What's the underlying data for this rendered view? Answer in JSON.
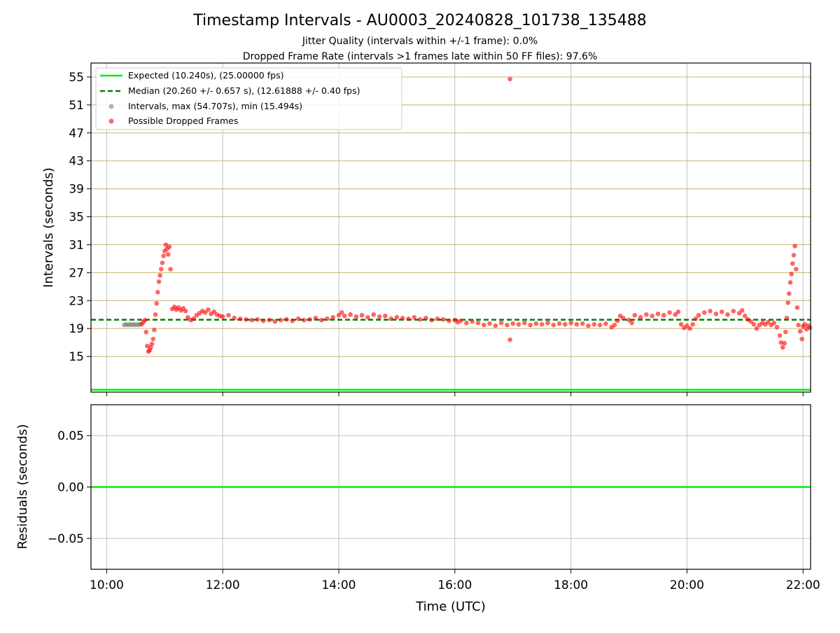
{
  "chart_data": [
    {
      "type": "scatter",
      "title": "Timestamp Intervals - AU0003_20240828_101738_135488",
      "subtitle_lines": [
        "Jitter Quality (intervals within +/-1 frame): 0.0%",
        "Dropped Frame Rate (intervals >1 frames late within 50 FF files): 97.6%"
      ],
      "xlabel": "",
      "ylabel": "Intervals (seconds)",
      "x_unit": "hours UTC",
      "xlim": [
        9.73,
        22.13
      ],
      "ylim": [
        9.9,
        57.0
      ],
      "yticks": [
        15,
        19,
        23,
        27,
        31,
        35,
        39,
        43,
        47,
        51,
        55
      ],
      "xticks": [
        10,
        12,
        14,
        16,
        18,
        20,
        22
      ],
      "grid": true,
      "legend_position": "top-left",
      "legend": [
        "Expected (10.240s), (25.00000 fps)",
        "Median (20.260 +/- 0.657 s), (12.61888 +/- 0.40 fps)",
        "Intervals, max (54.707s), min (15.494s)",
        "Possible Dropped Frames"
      ],
      "lines": [
        {
          "name": "Expected (10.240s), (25.00000 fps)",
          "y": 10.24,
          "style": "solid",
          "color": "#00ee00"
        },
        {
          "name": "Median (20.260 +/- 0.657 s), (12.61888 +/- 0.40 fps)",
          "y": 20.26,
          "style": "dashed",
          "color": "#008000"
        }
      ],
      "series": [
        {
          "name": "Intervals, max (54.707s), min (15.494s)",
          "color": "#808080",
          "points": [
            [
              10.3,
              19.5
            ],
            [
              10.33,
              19.6
            ],
            [
              10.36,
              19.5
            ],
            [
              10.39,
              19.6
            ],
            [
              10.42,
              19.5
            ],
            [
              10.45,
              19.6
            ],
            [
              10.48,
              19.5
            ],
            [
              10.51,
              19.6
            ],
            [
              10.54,
              19.5
            ],
            [
              10.57,
              19.6
            ]
          ]
        },
        {
          "name": "Possible Dropped Frames",
          "color": "#ff0000",
          "points": [
            [
              10.6,
              19.6
            ],
            [
              10.63,
              19.9
            ],
            [
              10.66,
              20.2
            ],
            [
              10.68,
              18.5
            ],
            [
              10.7,
              16.5
            ],
            [
              10.72,
              15.7
            ],
            [
              10.74,
              15.9
            ],
            [
              10.76,
              16.3
            ],
            [
              10.78,
              16.8
            ],
            [
              10.8,
              17.5
            ],
            [
              10.82,
              18.8
            ],
            [
              10.84,
              21.0
            ],
            [
              10.86,
              22.6
            ],
            [
              10.88,
              24.2
            ],
            [
              10.9,
              25.7
            ],
            [
              10.92,
              26.6
            ],
            [
              10.94,
              27.5
            ],
            [
              10.96,
              28.4
            ],
            [
              10.98,
              29.4
            ],
            [
              11.0,
              30.1
            ],
            [
              11.02,
              31.0
            ],
            [
              11.04,
              30.4
            ],
            [
              11.06,
              29.6
            ],
            [
              11.08,
              30.7
            ],
            [
              11.1,
              27.5
            ],
            [
              11.13,
              21.8
            ],
            [
              11.17,
              22.1
            ],
            [
              11.2,
              21.7
            ],
            [
              11.24,
              22.0
            ],
            [
              11.28,
              21.6
            ],
            [
              11.32,
              21.9
            ],
            [
              11.36,
              21.5
            ],
            [
              11.4,
              20.6
            ],
            [
              11.45,
              20.2
            ],
            [
              11.5,
              20.4
            ],
            [
              11.55,
              20.9
            ],
            [
              11.6,
              21.2
            ],
            [
              11.65,
              21.5
            ],
            [
              11.7,
              21.3
            ],
            [
              11.75,
              21.7
            ],
            [
              11.8,
              21.1
            ],
            [
              11.85,
              21.4
            ],
            [
              11.9,
              21.0
            ],
            [
              11.95,
              20.8
            ],
            [
              12.0,
              20.7
            ],
            [
              12.1,
              20.9
            ],
            [
              12.2,
              20.5
            ],
            [
              12.3,
              20.4
            ],
            [
              12.4,
              20.3
            ],
            [
              12.5,
              20.2
            ],
            [
              12.6,
              20.3
            ],
            [
              12.7,
              20.1
            ],
            [
              12.8,
              20.2
            ],
            [
              12.9,
              20.0
            ],
            [
              13.0,
              20.2
            ],
            [
              13.1,
              20.3
            ],
            [
              13.2,
              20.1
            ],
            [
              13.3,
              20.4
            ],
            [
              13.4,
              20.2
            ],
            [
              13.5,
              20.3
            ],
            [
              13.6,
              20.5
            ],
            [
              13.7,
              20.2
            ],
            [
              13.8,
              20.4
            ],
            [
              13.9,
              20.6
            ],
            [
              14.0,
              20.9
            ],
            [
              14.05,
              21.3
            ],
            [
              14.1,
              20.8
            ],
            [
              14.2,
              21.0
            ],
            [
              14.3,
              20.7
            ],
            [
              14.4,
              20.9
            ],
            [
              14.5,
              20.6
            ],
            [
              14.6,
              21.0
            ],
            [
              14.7,
              20.7
            ],
            [
              14.8,
              20.8
            ],
            [
              14.9,
              20.4
            ],
            [
              15.0,
              20.6
            ],
            [
              15.1,
              20.5
            ],
            [
              15.2,
              20.4
            ],
            [
              15.3,
              20.6
            ],
            [
              15.4,
              20.3
            ],
            [
              15.5,
              20.5
            ],
            [
              15.6,
              20.2
            ],
            [
              15.7,
              20.4
            ],
            [
              15.8,
              20.3
            ],
            [
              15.9,
              20.1
            ],
            [
              16.0,
              20.2
            ],
            [
              16.05,
              19.9
            ],
            [
              16.1,
              20.1
            ],
            [
              16.2,
              19.8
            ],
            [
              16.3,
              20.0
            ],
            [
              16.4,
              19.8
            ],
            [
              16.5,
              19.5
            ],
            [
              16.6,
              19.7
            ],
            [
              16.7,
              19.4
            ],
            [
              16.8,
              19.8
            ],
            [
              16.9,
              19.5
            ],
            [
              16.95,
              17.4
            ],
            [
              16.95,
              54.7
            ],
            [
              17.0,
              19.7
            ],
            [
              17.1,
              19.6
            ],
            [
              17.2,
              19.8
            ],
            [
              17.3,
              19.5
            ],
            [
              17.4,
              19.7
            ],
            [
              17.5,
              19.6
            ],
            [
              17.6,
              19.8
            ],
            [
              17.7,
              19.5
            ],
            [
              17.8,
              19.7
            ],
            [
              17.9,
              19.6
            ],
            [
              18.0,
              19.8
            ],
            [
              18.1,
              19.6
            ],
            [
              18.2,
              19.7
            ],
            [
              18.3,
              19.4
            ],
            [
              18.4,
              19.6
            ],
            [
              18.5,
              19.5
            ],
            [
              18.6,
              19.7
            ],
            [
              18.7,
              19.2
            ],
            [
              18.75,
              19.5
            ],
            [
              18.8,
              20.1
            ],
            [
              18.85,
              20.8
            ],
            [
              18.9,
              20.5
            ],
            [
              19.0,
              20.2
            ],
            [
              19.05,
              19.8
            ],
            [
              19.1,
              20.9
            ],
            [
              19.2,
              20.6
            ],
            [
              19.3,
              21.0
            ],
            [
              19.4,
              20.8
            ],
            [
              19.5,
              21.1
            ],
            [
              19.6,
              20.9
            ],
            [
              19.7,
              21.3
            ],
            [
              19.8,
              21.0
            ],
            [
              19.85,
              21.4
            ],
            [
              19.9,
              19.6
            ],
            [
              19.95,
              19.1
            ],
            [
              20.0,
              19.4
            ],
            [
              20.05,
              19.0
            ],
            [
              20.1,
              19.6
            ],
            [
              20.15,
              20.4
            ],
            [
              20.2,
              20.9
            ],
            [
              20.3,
              21.3
            ],
            [
              20.4,
              21.5
            ],
            [
              20.5,
              21.1
            ],
            [
              20.6,
              21.4
            ],
            [
              20.7,
              21.0
            ],
            [
              20.8,
              21.5
            ],
            [
              20.9,
              21.2
            ],
            [
              20.95,
              21.6
            ],
            [
              21.0,
              20.8
            ],
            [
              21.05,
              20.3
            ],
            [
              21.1,
              20.0
            ],
            [
              21.15,
              19.6
            ],
            [
              21.2,
              19.0
            ],
            [
              21.25,
              19.5
            ],
            [
              21.3,
              19.8
            ],
            [
              21.35,
              19.6
            ],
            [
              21.4,
              19.9
            ],
            [
              21.45,
              19.5
            ],
            [
              21.5,
              19.8
            ],
            [
              21.55,
              19.2
            ],
            [
              21.6,
              18.0
            ],
            [
              21.62,
              17.0
            ],
            [
              21.65,
              16.3
            ],
            [
              21.68,
              16.9
            ],
            [
              21.7,
              18.5
            ],
            [
              21.72,
              20.5
            ],
            [
              21.74,
              22.7
            ],
            [
              21.76,
              24.0
            ],
            [
              21.78,
              25.6
            ],
            [
              21.8,
              26.8
            ],
            [
              21.82,
              28.3
            ],
            [
              21.84,
              29.5
            ],
            [
              21.86,
              30.8
            ],
            [
              21.88,
              27.5
            ],
            [
              21.9,
              22.0
            ],
            [
              21.92,
              19.5
            ],
            [
              21.95,
              18.6
            ],
            [
              21.98,
              17.5
            ],
            [
              22.0,
              19.3
            ],
            [
              22.03,
              19.6
            ],
            [
              22.06,
              18.9
            ],
            [
              22.09,
              19.4
            ],
            [
              22.12,
              19.1
            ]
          ]
        }
      ]
    },
    {
      "type": "line",
      "title": "",
      "xlabel": "Time (UTC)",
      "ylabel": "Residuals (seconds)",
      "xlim": [
        9.73,
        22.13
      ],
      "ylim": [
        -0.08,
        0.08
      ],
      "yticks": [
        0.05,
        0.0,
        -0.05
      ],
      "ytick_labels": [
        "0.05",
        "0.00",
        "−0.05"
      ],
      "xticks": [
        10,
        12,
        14,
        16,
        18,
        20,
        22
      ],
      "xtick_labels": [
        "10:00",
        "12:00",
        "14:00",
        "16:00",
        "18:00",
        "20:00",
        "22:00"
      ],
      "grid": true,
      "lines": [
        {
          "name": "",
          "y": 0.0,
          "style": "solid",
          "color": "#00ee00"
        }
      ]
    }
  ]
}
